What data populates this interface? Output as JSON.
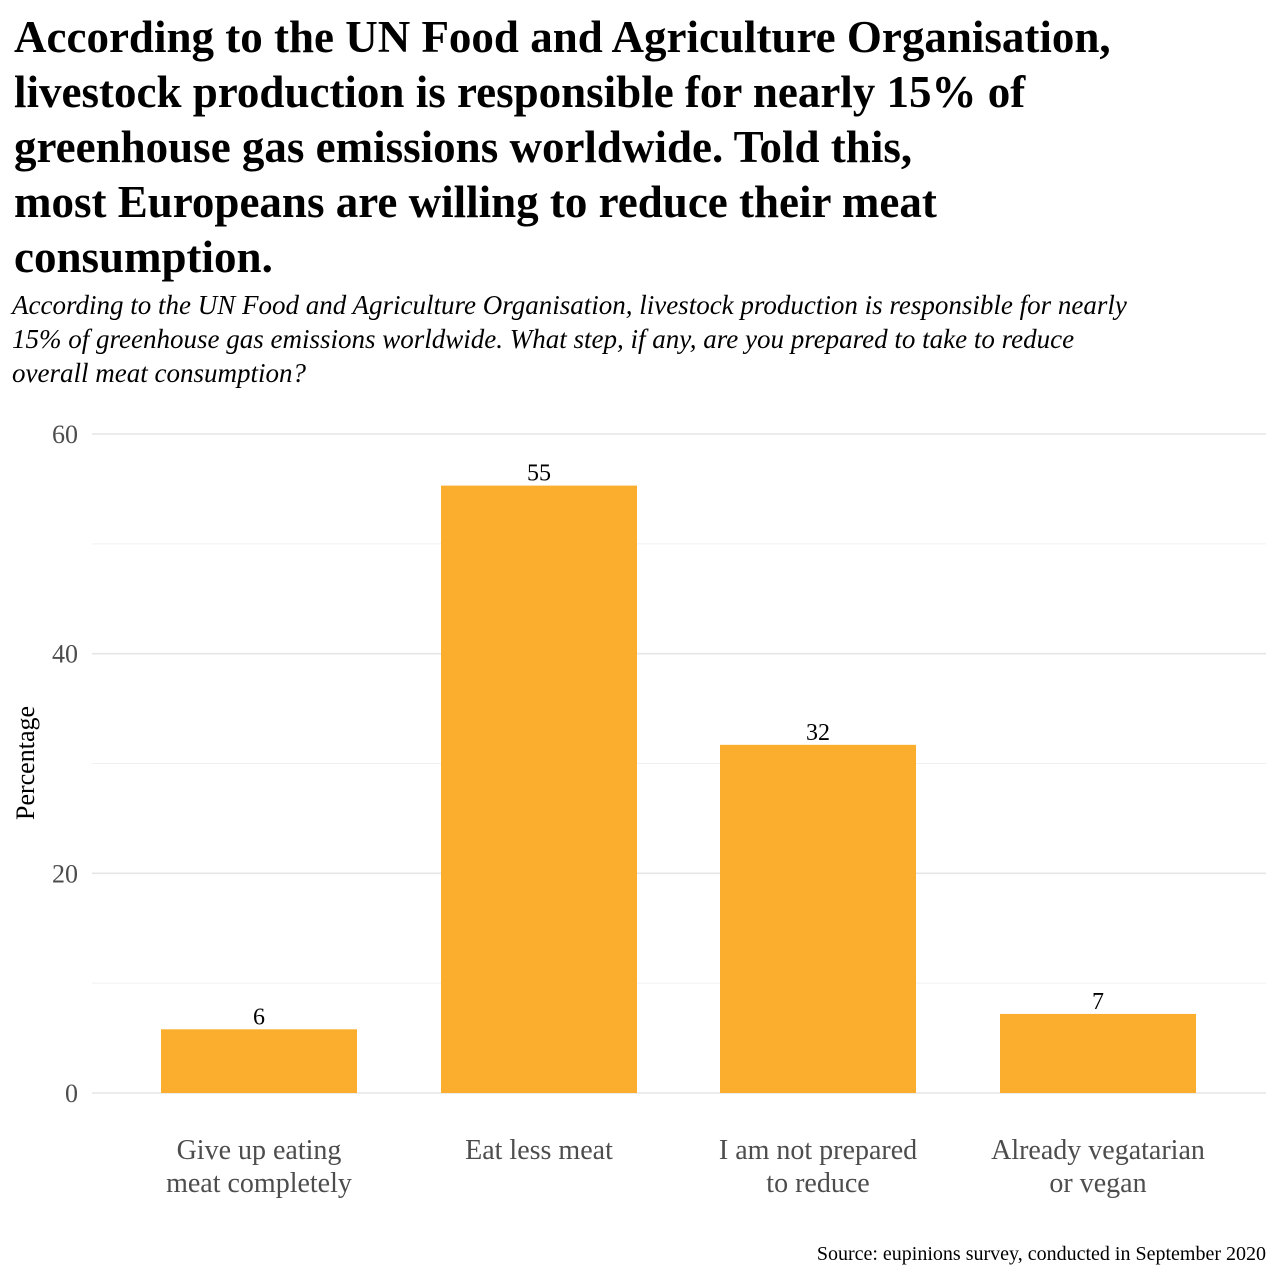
{
  "title": "According to the UN Food and Agriculture Organisation,\n livestock production is responsible for nearly 15% of\n greenhouse gas emissions worldwide. Told this,\n most Europeans are willing to reduce their meat\n consumption.",
  "subtitle": "According to the UN Food and Agriculture Organisation, livestock production is responsible for nearly\n 15% of greenhouse gas emissions worldwide. What step, if any, are you prepared to take to reduce\n overall meat consumption?",
  "source": "Source: eupinions survey, conducted in September 2020",
  "colors": {
    "bar": "#FBAE2D"
  },
  "chart_data": {
    "type": "bar",
    "categories": [
      [
        "Give up eating",
        "meat completely"
      ],
      [
        "Eat less meat"
      ],
      [
        "I am not prepared",
        "to reduce"
      ],
      [
        "Already vegatarian",
        "or vegan"
      ]
    ],
    "values": [
      6,
      55,
      32,
      7
    ],
    "value_heights": [
      5.8,
      55.3,
      31.7,
      7.2
    ],
    "xlabel": "",
    "ylabel": "Percentage",
    "ylim": [
      0,
      60
    ],
    "yticks": [
      0,
      20,
      40,
      60
    ],
    "grid": true,
    "legend": "none"
  }
}
